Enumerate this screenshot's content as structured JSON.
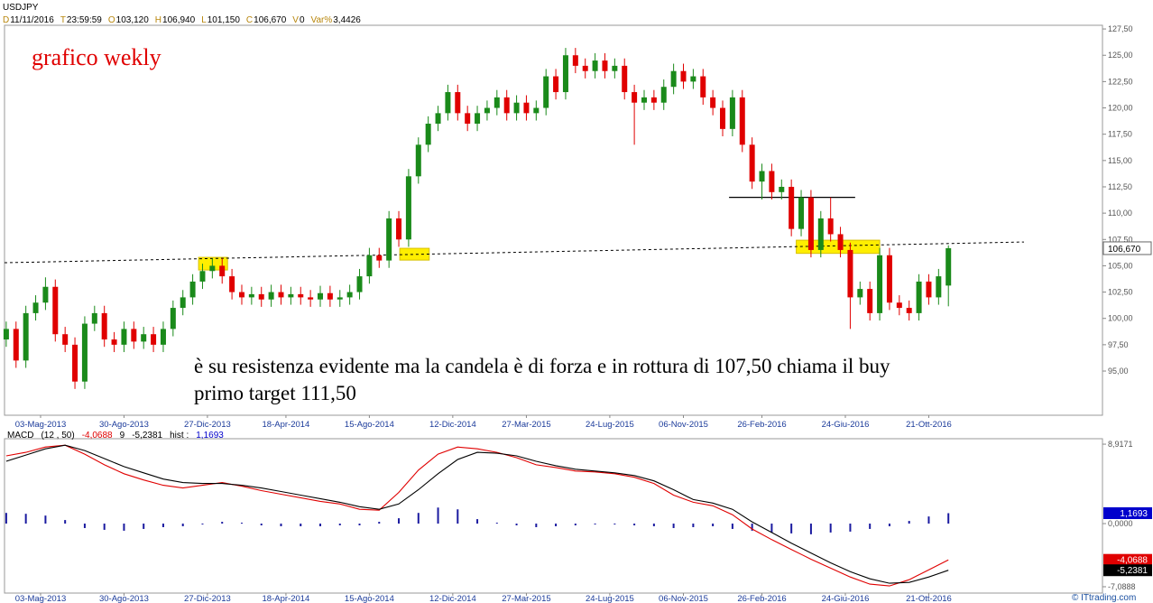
{
  "chart_data": [
    {
      "type": "candlestick",
      "symbol": "USDJPY",
      "header": [
        {
          "key": "D",
          "value": "11/11/2016"
        },
        {
          "key": "T",
          "value": "23:59:59"
        },
        {
          "key": "O",
          "value": "103,120"
        },
        {
          "key": "H",
          "value": "106,940"
        },
        {
          "key": "L",
          "value": "101,150"
        },
        {
          "key": "C",
          "value": "106,670"
        },
        {
          "key": "V",
          "value": "0"
        },
        {
          "key": "Var%",
          "value": "3,4426"
        }
      ],
      "title": "grafico wekly",
      "annotation": [
        "è su resistenza evidente ma la candela è di forza e in rottura di 107,50 chiama il buy",
        "primo target 111,50"
      ],
      "x": [
        -7,
        -5,
        -3,
        -1,
        1,
        3,
        5,
        7,
        9,
        11,
        13,
        15,
        17,
        19,
        21,
        23,
        25,
        27,
        29,
        31,
        33,
        35,
        37,
        39,
        41,
        43,
        45,
        47,
        49,
        51,
        53,
        55,
        57,
        59,
        61,
        63,
        65,
        67,
        69,
        71,
        73,
        75,
        77,
        79,
        81,
        83,
        85,
        87,
        89,
        91,
        93,
        95,
        97,
        99,
        101,
        103,
        105,
        107,
        109,
        111,
        113,
        115,
        117,
        119,
        121,
        123,
        125,
        127,
        129,
        131,
        133,
        135,
        137,
        139,
        141,
        143,
        145,
        147,
        149,
        151,
        153,
        155,
        157,
        159,
        161,
        163,
        165,
        167,
        169,
        171,
        173,
        175,
        177,
        179,
        181,
        183,
        185
      ],
      "open": [
        98.0,
        99.0,
        96.0,
        100.5,
        101.5,
        103.0,
        98.5,
        97.5,
        94.0,
        99.5,
        100.5,
        98.0,
        97.5,
        99.0,
        97.8,
        98.5,
        97.5,
        99.0,
        101.0,
        102.0,
        103.5,
        104.5,
        105.0,
        104.0,
        102.5,
        102.0,
        102.3,
        101.8,
        102.5,
        102.0,
        102.3,
        102.0,
        101.8,
        102.4,
        101.8,
        102.0,
        102.5,
        104.0,
        106.0,
        105.5,
        109.5,
        107.5,
        113.5,
        116.5,
        118.5,
        119.5,
        121.5,
        119.5,
        118.5,
        119.5,
        120.0,
        121.0,
        119.5,
        120.5,
        119.5,
        120.0,
        123.0,
        121.5,
        125.0,
        124.0,
        123.5,
        124.5,
        123.5,
        124.0,
        121.5,
        120.5,
        121.0,
        120.5,
        122.0,
        123.5,
        122.5,
        123.0,
        121.0,
        120.0,
        118.0,
        121.0,
        116.5,
        113.0,
        114.0,
        112.0,
        112.5,
        108.5,
        111.5,
        106.5,
        109.5,
        108.0,
        106.5,
        102.0,
        102.8,
        100.5,
        106.0,
        101.5,
        101.0,
        100.5,
        103.5,
        102.0,
        103.12
      ],
      "high": [
        99.7,
        99.7,
        101.2,
        102.2,
        103.9,
        103.7,
        99.2,
        98.2,
        100.2,
        101.2,
        101.2,
        98.7,
        99.7,
        99.7,
        99.2,
        99.2,
        99.7,
        101.7,
        102.7,
        104.2,
        105.2,
        105.7,
        105.7,
        104.7,
        103.2,
        103.0,
        103.0,
        103.2,
        103.2,
        103.0,
        103.0,
        102.7,
        103.1,
        103.1,
        102.7,
        103.2,
        104.7,
        106.7,
        106.7,
        110.2,
        110.2,
        114.2,
        117.2,
        119.2,
        120.2,
        122.2,
        122.2,
        120.2,
        120.2,
        120.7,
        121.7,
        121.7,
        121.2,
        121.2,
        120.7,
        123.7,
        123.7,
        125.7,
        125.7,
        124.7,
        125.2,
        125.2,
        124.7,
        124.7,
        122.2,
        121.7,
        121.7,
        122.7,
        124.2,
        124.2,
        123.7,
        123.7,
        121.7,
        120.7,
        121.7,
        121.7,
        117.2,
        114.7,
        114.7,
        113.2,
        113.2,
        112.2,
        112.2,
        110.2,
        111.5,
        108.7,
        107.2,
        103.5,
        103.5,
        106.7,
        106.7,
        102.2,
        101.7,
        104.2,
        104.2,
        104.7,
        106.94
      ],
      "low": [
        97.3,
        95.3,
        95.3,
        99.8,
        100.8,
        97.8,
        96.8,
        93.3,
        93.3,
        98.8,
        97.3,
        96.8,
        96.8,
        97.1,
        97.1,
        96.8,
        96.8,
        98.3,
        100.3,
        101.3,
        102.8,
        103.8,
        103.3,
        101.8,
        101.3,
        101.3,
        101.1,
        101.1,
        101.3,
        101.3,
        101.3,
        101.1,
        101.1,
        101.1,
        101.1,
        101.3,
        101.8,
        103.3,
        104.8,
        104.8,
        106.8,
        106.8,
        112.8,
        115.8,
        117.8,
        118.8,
        118.8,
        117.8,
        117.8,
        118.8,
        119.3,
        118.8,
        118.8,
        118.8,
        118.8,
        119.3,
        120.8,
        120.8,
        123.3,
        122.8,
        122.8,
        122.8,
        122.8,
        120.8,
        116.5,
        119.8,
        119.8,
        119.8,
        121.3,
        121.8,
        121.8,
        120.3,
        119.3,
        117.3,
        117.3,
        115.8,
        112.3,
        111.3,
        111.3,
        111.3,
        107.8,
        107.8,
        105.8,
        105.8,
        107.3,
        105.8,
        99.0,
        101.3,
        99.8,
        99.8,
        100.8,
        100.3,
        99.8,
        99.8,
        101.3,
        101.3,
        101.15
      ],
      "close": [
        99.0,
        96.0,
        100.5,
        101.5,
        103.0,
        98.5,
        97.5,
        94.0,
        99.5,
        100.5,
        98.0,
        97.5,
        99.0,
        97.8,
        98.5,
        97.5,
        99.0,
        101.0,
        102.0,
        103.5,
        104.5,
        105.0,
        104.0,
        102.5,
        102.0,
        102.3,
        101.8,
        102.5,
        102.0,
        102.3,
        102.0,
        101.8,
        102.4,
        101.8,
        102.0,
        102.5,
        104.0,
        106.0,
        105.5,
        109.5,
        107.5,
        113.5,
        116.5,
        118.5,
        119.5,
        121.5,
        119.5,
        118.5,
        119.5,
        120.0,
        121.0,
        119.5,
        120.5,
        119.5,
        120.0,
        123.0,
        121.5,
        125.0,
        124.0,
        123.5,
        124.5,
        123.5,
        124.0,
        121.5,
        120.5,
        121.0,
        120.5,
        122.0,
        123.5,
        122.5,
        123.0,
        121.0,
        120.0,
        118.0,
        121.0,
        116.5,
        113.0,
        114.0,
        112.0,
        112.5,
        108.5,
        111.5,
        106.5,
        109.5,
        108.0,
        106.5,
        102.0,
        102.8,
        100.5,
        106.0,
        101.5,
        101.0,
        100.5,
        103.5,
        102.0,
        104.0,
        106.67
      ],
      "up_color": "#1a8a1a",
      "down_color": "#e00000",
      "xlim": [
        -7.35,
        216.4
      ],
      "ylim": [
        90.8,
        127.85
      ],
      "grid": false,
      "yticks": [
        {
          "value": 95,
          "label": "95,00"
        },
        {
          "value": 97.5,
          "label": "97,50"
        },
        {
          "value": 100,
          "label": "100,00"
        },
        {
          "value": 102.5,
          "label": "102,50"
        },
        {
          "value": 105,
          "label": "105,00"
        },
        {
          "value": 107.5,
          "label": "107,50"
        },
        {
          "value": 110,
          "label": "110,00"
        },
        {
          "value": 112.5,
          "label": "112,50"
        },
        {
          "value": 115,
          "label": "115,00"
        },
        {
          "value": 117.5,
          "label": "117,50"
        },
        {
          "value": 120,
          "label": "120,00"
        },
        {
          "value": 122.5,
          "label": "122,50"
        },
        {
          "value": 125,
          "label": "125,00"
        },
        {
          "value": 127.5,
          "label": "127,50"
        }
      ],
      "xticks": [
        {
          "value": 0,
          "label": "03-Mag-2013"
        },
        {
          "value": 17,
          "label": "30-Ago-2013"
        },
        {
          "value": 34,
          "label": "27-Dic-2013"
        },
        {
          "value": 50,
          "label": "18-Apr-2014"
        },
        {
          "value": 67,
          "label": "15-Ago-2014"
        },
        {
          "value": 84,
          "label": "12-Dic-2014"
        },
        {
          "value": 99,
          "label": "27-Mar-2015"
        },
        {
          "value": 116,
          "label": "24-Lug-2015"
        },
        {
          "value": 131,
          "label": "06-Nov-2015"
        },
        {
          "value": 147,
          "label": "26-Feb-2016"
        },
        {
          "value": 164,
          "label": "24-Giu-2016"
        },
        {
          "value": 181,
          "label": "21-Ott-2016"
        }
      ],
      "trendline": {
        "x": [
          -7.35,
          200.4
        ],
        "y": [
          105.29,
          107.26
        ]
      },
      "level_line": {
        "x": [
          140.3,
          166
        ],
        "y": [
          111.5,
          111.5
        ]
      },
      "highlights": [
        {
          "x": [
            32.2,
            38.1
          ],
          "y": [
            104.6,
            105.8
          ]
        },
        {
          "x": [
            73.2,
            79.2
          ],
          "y": [
            105.54,
            106.66
          ]
        },
        {
          "x": [
            154,
            171
          ],
          "y": [
            106.18,
            107.43
          ]
        }
      ],
      "highlight_color": "#ffee00",
      "last_price": {
        "value": 106.67,
        "label": "106,670"
      },
      "footer": "© ITtrading.com"
    },
    {
      "type": "macd",
      "header": [
        {
          "text": "MACD",
          "color": "#000000"
        },
        {
          "text": "(12 , 50)",
          "color": "#000000"
        },
        {
          "text": "-4,0688",
          "color": "#e00000"
        },
        {
          "text": "9",
          "color": "#000000"
        },
        {
          "text": "-5,2381",
          "color": "#000000"
        },
        {
          "text": "hist :",
          "color": "#000000"
        },
        {
          "text": "1,1693",
          "color": "#0000cc"
        }
      ],
      "x": [
        -7,
        -3,
        1,
        5,
        9,
        13,
        17,
        21,
        25,
        29,
        33,
        37,
        41,
        45,
        49,
        53,
        57,
        61,
        65,
        69,
        73,
        77,
        81,
        85,
        89,
        93,
        97,
        101,
        105,
        109,
        113,
        117,
        121,
        125,
        129,
        133,
        137,
        141,
        145,
        149,
        153,
        157,
        161,
        165,
        169,
        173,
        177,
        181,
        185
      ],
      "xlim": [
        -7.35,
        216.4
      ],
      "ylim": [
        -7.8,
        9.53
      ],
      "yticks": [
        {
          "value": 8.9171,
          "label": "8,9171"
        },
        {
          "value": 0,
          "label": "0,0000"
        },
        {
          "value": -7.0888,
          "label": "-7,0888"
        }
      ],
      "series": [
        {
          "kind": "bar",
          "color": "#1a1aa0",
          "values": [
            1.2,
            1.1,
            0.9,
            0.4,
            -0.5,
            -0.7,
            -0.8,
            -0.6,
            -0.4,
            -0.3,
            -0.1,
            0.2,
            0.1,
            -0.2,
            -0.3,
            -0.3,
            -0.3,
            -0.2,
            -0.2,
            0.2,
            0.6,
            1.2,
            1.8,
            1.6,
            0.5,
            0.1,
            -0.2,
            -0.4,
            -0.3,
            -0.2,
            -0.1,
            -0.1,
            -0.2,
            -0.3,
            -0.5,
            -0.4,
            -0.3,
            -0.6,
            -0.8,
            -1.0,
            -1.1,
            -1.2,
            -1.0,
            -0.9,
            -0.6,
            -0.3,
            0.3,
            0.8,
            1.1693
          ]
        },
        {
          "kind": "line",
          "color": "#e00000",
          "values": [
            7.6,
            8.0,
            8.6,
            8.8,
            7.8,
            6.6,
            5.6,
            4.9,
            4.3,
            4.0,
            4.3,
            4.6,
            4.2,
            3.7,
            3.3,
            2.9,
            2.5,
            2.2,
            1.6,
            1.5,
            3.5,
            6.0,
            7.8,
            8.6,
            8.4,
            8.0,
            7.4,
            6.6,
            6.3,
            5.9,
            5.8,
            5.6,
            5.2,
            4.5,
            3.2,
            2.4,
            2.0,
            1.0,
            -0.6,
            -1.8,
            -2.9,
            -4.0,
            -5.0,
            -6.0,
            -6.8,
            -7.0,
            -6.3,
            -5.2,
            -4.0688
          ]
        },
        {
          "kind": "line",
          "color": "#000000",
          "values": [
            7.0,
            7.7,
            8.4,
            8.8,
            8.2,
            7.3,
            6.4,
            5.7,
            5.0,
            4.6,
            4.5,
            4.5,
            4.3,
            4.0,
            3.6,
            3.2,
            2.8,
            2.4,
            1.9,
            1.6,
            2.2,
            3.8,
            5.6,
            7.2,
            8.0,
            7.9,
            7.6,
            7.0,
            6.5,
            6.1,
            5.9,
            5.7,
            5.4,
            4.8,
            3.8,
            2.7,
            2.3,
            1.6,
            0.2,
            -1.0,
            -2.2,
            -3.3,
            -4.4,
            -5.4,
            -6.2,
            -6.7,
            -6.6,
            -6.0,
            -5.2381
          ]
        }
      ],
      "markers": [
        {
          "value": 1.1693,
          "label": "1,1693",
          "color": "#0000cc"
        },
        {
          "value": -4.0688,
          "label": "-4,0688",
          "color": "#e00000"
        },
        {
          "value": -5.2381,
          "label": "-5,2381",
          "color": "#000000"
        }
      ]
    }
  ]
}
